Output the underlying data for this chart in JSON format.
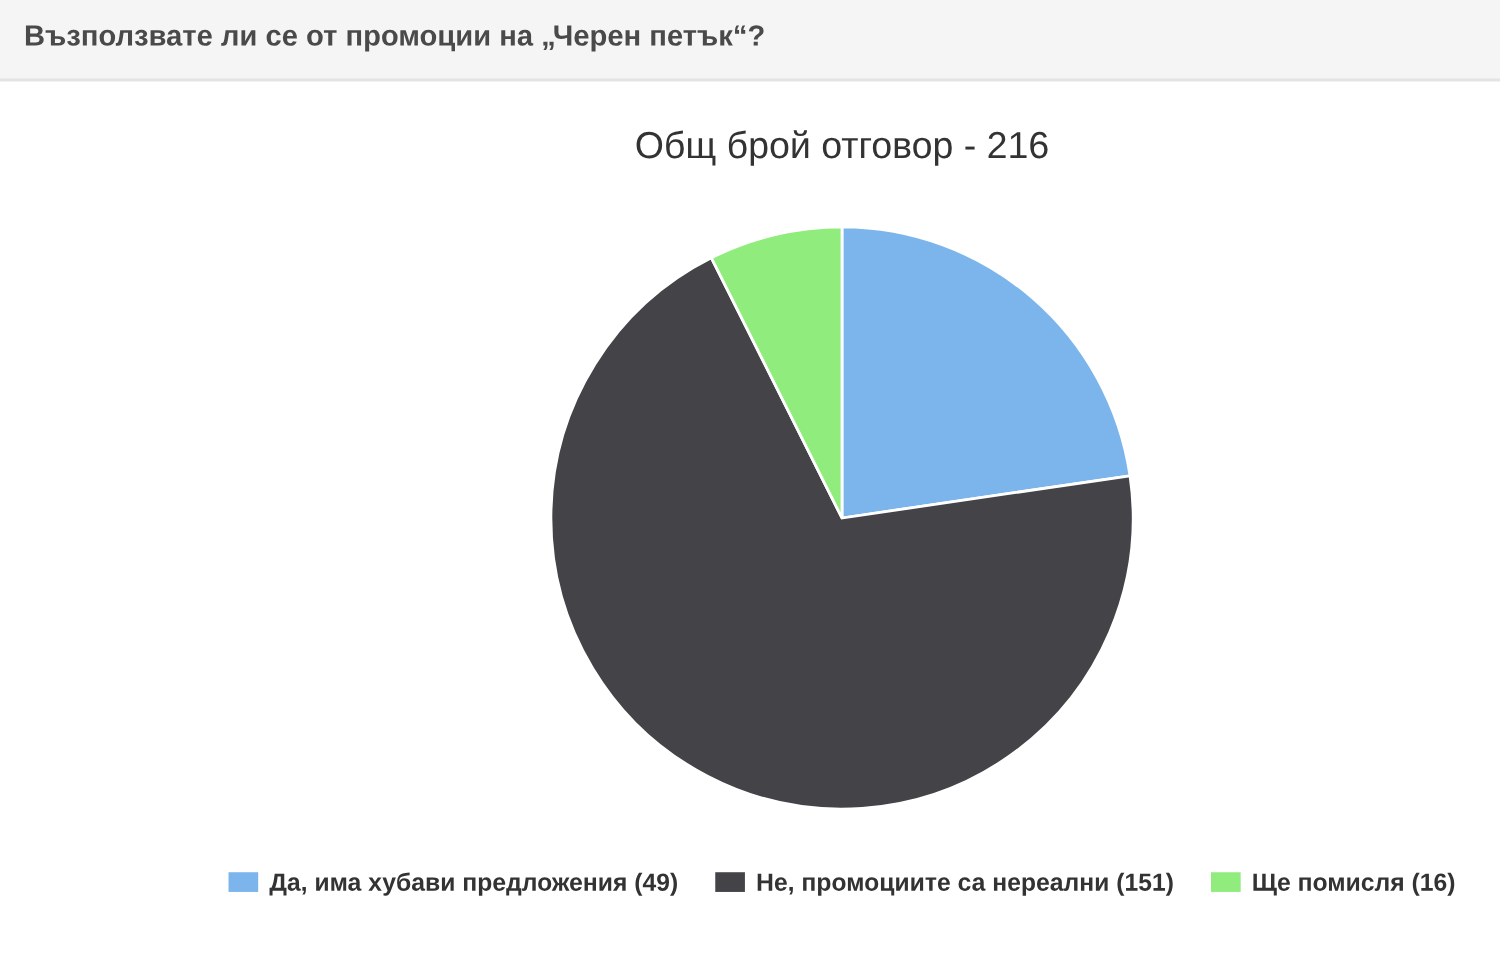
{
  "chart_data": {
    "type": "pie",
    "title": "Възползвате ли се от промоции на „Черен петък“?",
    "subtitle": "Общ брой отговор - 216",
    "categories": [
      "Да, има хубави предложения (49)",
      "Не, промоциите са нереални (151)",
      "Ще помисля (16)"
    ],
    "values": [
      49,
      151,
      16
    ],
    "colors": [
      "#7cb5ec",
      "#434348",
      "#90ed7d"
    ],
    "legend": "bottom"
  }
}
